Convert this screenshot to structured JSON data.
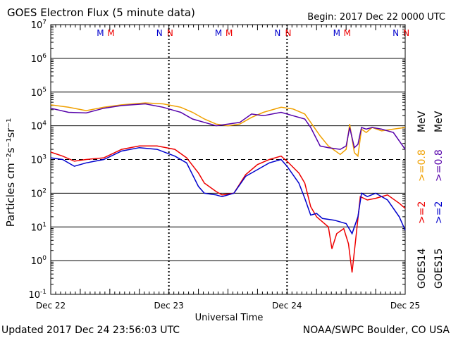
{
  "header": {
    "title": "GOES Electron Flux (5 minute data)",
    "begin": "Begin: 2017 Dec 22 0000 UTC"
  },
  "footer": {
    "updated": "Updated 2017 Dec 24 23:56:03 UTC",
    "credit": "NOAA/SWPC Boulder, CO USA"
  },
  "legend": {
    "goes14": "GOES14",
    "goes15": "GOES15",
    "goes14_gt2": ">=2",
    "goes14_gt08": ">=0.8",
    "goes15_gt2": ">=2",
    "goes15_gt08": ">=0.8",
    "mev": "MeV",
    "mev2": "MeV"
  },
  "markers": [
    {
      "day": 0,
      "label": "M",
      "color": "#0000cc",
      "x": 0.42
    },
    {
      "day": 0,
      "label": "M",
      "color": "#ee0000",
      "x": 0.51
    },
    {
      "day": 0,
      "label": "N",
      "color": "#0000cc",
      "x": 0.92
    },
    {
      "day": 0,
      "label": "N",
      "color": "#ee0000",
      "x": 1.01
    },
    {
      "day": 1,
      "label": "M",
      "color": "#0000cc",
      "x": 1.42
    },
    {
      "day": 1,
      "label": "M",
      "color": "#ee0000",
      "x": 1.51
    },
    {
      "day": 1,
      "label": "N",
      "color": "#0000cc",
      "x": 1.92
    },
    {
      "day": 1,
      "label": "N",
      "color": "#ee0000",
      "x": 2.01
    },
    {
      "day": 2,
      "label": "M",
      "color": "#0000cc",
      "x": 2.42
    },
    {
      "day": 2,
      "label": "M",
      "color": "#ee0000",
      "x": 2.51
    },
    {
      "day": 2,
      "label": "N",
      "color": "#0000cc",
      "x": 2.92
    },
    {
      "day": 2,
      "label": "N",
      "color": "#ee0000",
      "x": 3.01
    }
  ],
  "chart_data": {
    "type": "line",
    "xlabel": "Universal Time",
    "ylabel": "Particles cm⁻²s⁻¹sr⁻¹",
    "x_ticks": [
      "Dec 22",
      "Dec 23",
      "Dec 24",
      "Dec 25"
    ],
    "y_scale": "log",
    "ylim_exp": [
      -1,
      7
    ],
    "y_tick_exponents": [
      -1,
      0,
      1,
      2,
      3,
      4,
      5,
      6,
      7
    ],
    "grid": true,
    "dashed_threshold_exp": 3,
    "x_unit": "days since Dec 22 0000 UTC",
    "series": [
      {
        "name": "GOES14 >=0.8 MeV",
        "color": "#f0a000",
        "points": [
          [
            0,
            4.62
          ],
          [
            0.15,
            4.55
          ],
          [
            0.3,
            4.45
          ],
          [
            0.45,
            4.55
          ],
          [
            0.6,
            4.62
          ],
          [
            0.8,
            4.68
          ],
          [
            0.95,
            4.65
          ],
          [
            1.1,
            4.55
          ],
          [
            1.2,
            4.4
          ],
          [
            1.3,
            4.2
          ],
          [
            1.4,
            4.05
          ],
          [
            1.5,
            4.0
          ],
          [
            1.6,
            4.05
          ],
          [
            1.7,
            4.25
          ],
          [
            1.8,
            4.4
          ],
          [
            1.95,
            4.55
          ],
          [
            2.05,
            4.5
          ],
          [
            2.15,
            4.35
          ],
          [
            2.2,
            4.1
          ],
          [
            2.28,
            3.7
          ],
          [
            2.35,
            3.4
          ],
          [
            2.45,
            3.15
          ],
          [
            2.5,
            3.3
          ],
          [
            2.53,
            4.05
          ],
          [
            2.57,
            3.2
          ],
          [
            2.6,
            3.1
          ],
          [
            2.63,
            3.9
          ],
          [
            2.67,
            3.8
          ],
          [
            2.72,
            3.95
          ],
          [
            2.8,
            3.85
          ],
          [
            2.9,
            3.9
          ],
          [
            3.0,
            3.95
          ]
        ]
      },
      {
        "name": "GOES15 >=0.8 MeV",
        "color": "#5500aa",
        "points": [
          [
            0,
            4.52
          ],
          [
            0.15,
            4.4
          ],
          [
            0.3,
            4.38
          ],
          [
            0.45,
            4.52
          ],
          [
            0.6,
            4.6
          ],
          [
            0.8,
            4.65
          ],
          [
            0.95,
            4.55
          ],
          [
            1.1,
            4.4
          ],
          [
            1.2,
            4.2
          ],
          [
            1.3,
            4.1
          ],
          [
            1.4,
            4.0
          ],
          [
            1.5,
            4.05
          ],
          [
            1.6,
            4.1
          ],
          [
            1.7,
            4.35
          ],
          [
            1.8,
            4.3
          ],
          [
            1.95,
            4.4
          ],
          [
            2.05,
            4.3
          ],
          [
            2.15,
            4.2
          ],
          [
            2.2,
            3.95
          ],
          [
            2.28,
            3.4
          ],
          [
            2.35,
            3.35
          ],
          [
            2.45,
            3.3
          ],
          [
            2.5,
            3.4
          ],
          [
            2.53,
            3.95
          ],
          [
            2.57,
            3.35
          ],
          [
            2.6,
            3.45
          ],
          [
            2.63,
            3.95
          ],
          [
            2.67,
            3.9
          ],
          [
            2.72,
            3.95
          ],
          [
            2.8,
            3.9
          ],
          [
            2.9,
            3.8
          ],
          [
            3.0,
            3.3
          ]
        ]
      },
      {
        "name": "GOES14 >=2 MeV",
        "color": "#ee0000",
        "points": [
          [
            0,
            3.22
          ],
          [
            0.1,
            3.1
          ],
          [
            0.2,
            2.95
          ],
          [
            0.3,
            3.0
          ],
          [
            0.45,
            3.05
          ],
          [
            0.6,
            3.3
          ],
          [
            0.75,
            3.4
          ],
          [
            0.9,
            3.4
          ],
          [
            1.05,
            3.3
          ],
          [
            1.15,
            3.05
          ],
          [
            1.25,
            2.6
          ],
          [
            1.3,
            2.3
          ],
          [
            1.4,
            2.05
          ],
          [
            1.45,
            1.95
          ],
          [
            1.55,
            2.0
          ],
          [
            1.65,
            2.55
          ],
          [
            1.75,
            2.85
          ],
          [
            1.85,
            3.0
          ],
          [
            1.95,
            3.1
          ],
          [
            2.0,
            2.95
          ],
          [
            2.1,
            2.6
          ],
          [
            2.15,
            2.3
          ],
          [
            2.2,
            1.6
          ],
          [
            2.25,
            1.3
          ],
          [
            2.3,
            1.15
          ],
          [
            2.35,
            1.0
          ],
          [
            2.38,
            0.35
          ],
          [
            2.42,
            0.8
          ],
          [
            2.48,
            0.95
          ],
          [
            2.52,
            0.5
          ],
          [
            2.55,
            -0.35
          ],
          [
            2.58,
            0.6
          ],
          [
            2.62,
            1.9
          ],
          [
            2.68,
            1.8
          ],
          [
            2.75,
            1.85
          ],
          [
            2.85,
            1.95
          ],
          [
            2.95,
            1.7
          ],
          [
            3.0,
            1.55
          ]
        ]
      },
      {
        "name": "GOES15 >=2 MeV",
        "color": "#0000cc",
        "points": [
          [
            0,
            3.05
          ],
          [
            0.1,
            3.0
          ],
          [
            0.2,
            2.8
          ],
          [
            0.3,
            2.9
          ],
          [
            0.45,
            3.0
          ],
          [
            0.6,
            3.25
          ],
          [
            0.75,
            3.35
          ],
          [
            0.9,
            3.3
          ],
          [
            1.05,
            3.1
          ],
          [
            1.15,
            2.9
          ],
          [
            1.25,
            2.2
          ],
          [
            1.3,
            2.0
          ],
          [
            1.4,
            1.95
          ],
          [
            1.45,
            1.9
          ],
          [
            1.55,
            2.0
          ],
          [
            1.65,
            2.5
          ],
          [
            1.75,
            2.7
          ],
          [
            1.85,
            2.9
          ],
          [
            1.95,
            3.0
          ],
          [
            2.0,
            2.8
          ],
          [
            2.1,
            2.3
          ],
          [
            2.15,
            1.85
          ],
          [
            2.2,
            1.35
          ],
          [
            2.25,
            1.4
          ],
          [
            2.3,
            1.25
          ],
          [
            2.4,
            1.2
          ],
          [
            2.5,
            1.1
          ],
          [
            2.55,
            0.8
          ],
          [
            2.6,
            1.3
          ],
          [
            2.63,
            2.0
          ],
          [
            2.68,
            1.9
          ],
          [
            2.75,
            2.0
          ],
          [
            2.85,
            1.8
          ],
          [
            2.95,
            1.3
          ],
          [
            3.0,
            0.9
          ]
        ]
      }
    ]
  }
}
